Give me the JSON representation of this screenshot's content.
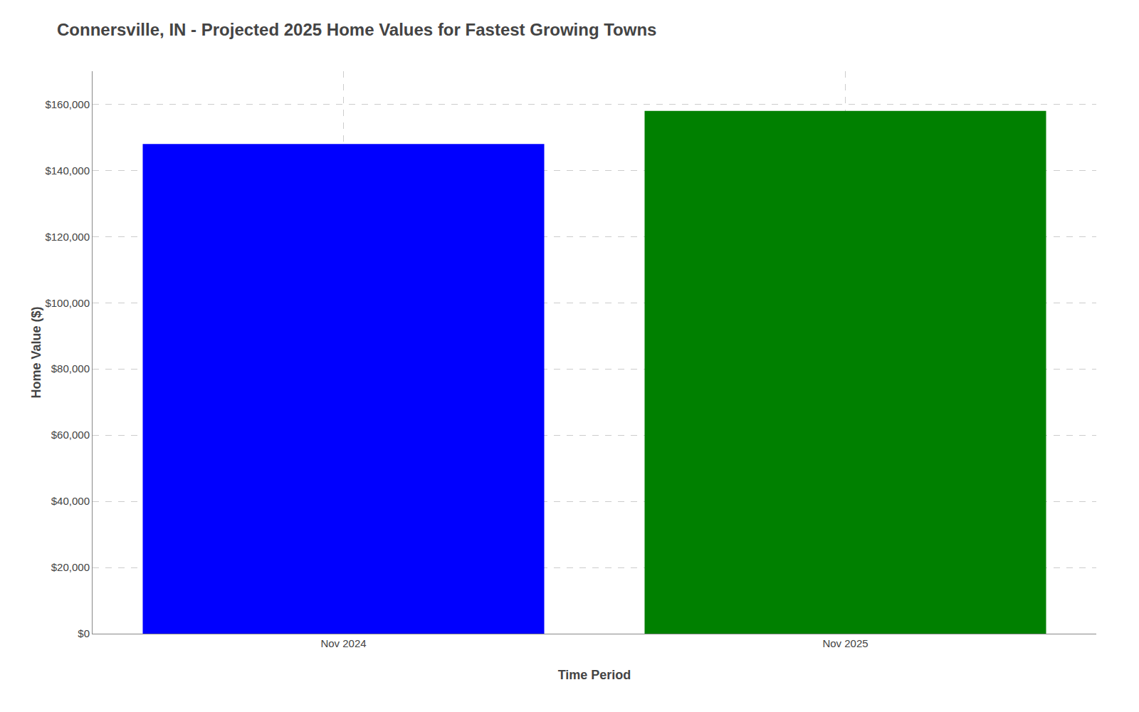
{
  "chart_data": {
    "type": "bar",
    "title": "Connersville, IN - Projected 2025 Home Values for Fastest Growing Towns",
    "xlabel": "Time Period",
    "ylabel": "Home Value ($)",
    "categories": [
      "Nov 2024",
      "Nov 2025"
    ],
    "values": [
      148000,
      158000
    ],
    "colors": [
      "#0000ff",
      "#008000"
    ],
    "ylim": [
      0,
      170000
    ],
    "yticks": [
      {
        "value": 0,
        "label": "$0"
      },
      {
        "value": 20000,
        "label": "$20,000"
      },
      {
        "value": 40000,
        "label": "$40,000"
      },
      {
        "value": 60000,
        "label": "$60,000"
      },
      {
        "value": 80000,
        "label": "$80,000"
      },
      {
        "value": 100000,
        "label": "$100,000"
      },
      {
        "value": 120000,
        "label": "$120,000"
      },
      {
        "value": 140000,
        "label": "$140,000"
      },
      {
        "value": 160000,
        "label": "$160,000"
      }
    ],
    "grid": true
  }
}
